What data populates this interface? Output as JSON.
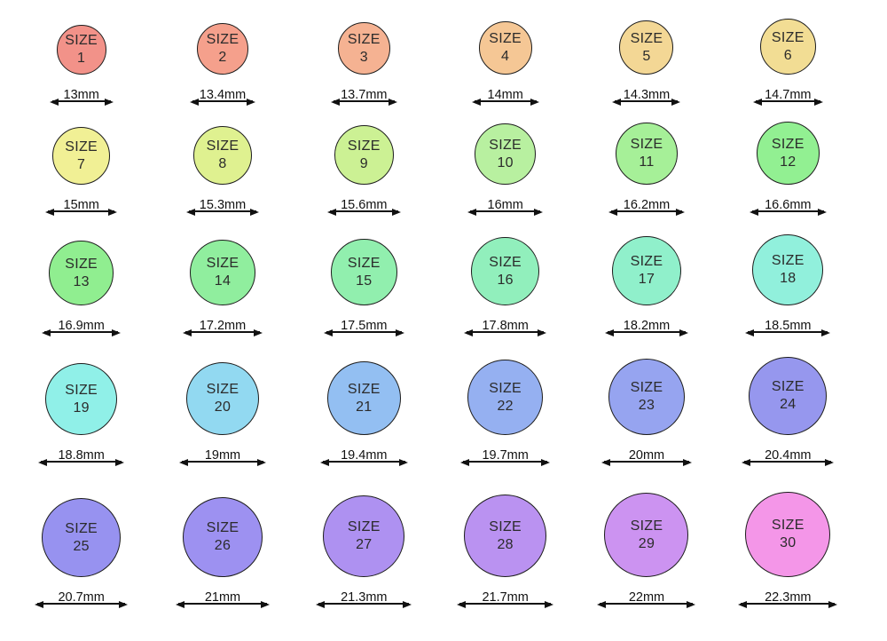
{
  "page": {
    "background_color": "#ffffff",
    "text_color": "#2b2b2b",
    "stroke_color": "#1c1c1c",
    "description_unit": "mm"
  },
  "ring_sizes": [
    {
      "size_label": "SIZE",
      "number": "1",
      "diameter_label": "13mm",
      "diameter_mm": 13.0,
      "color": "#F29289"
    },
    {
      "size_label": "SIZE",
      "number": "2",
      "diameter_label": "13.4mm",
      "diameter_mm": 13.4,
      "color": "#F5A08C"
    },
    {
      "size_label": "SIZE",
      "number": "3",
      "diameter_label": "13.7mm",
      "diameter_mm": 13.7,
      "color": "#F5B292"
    },
    {
      "size_label": "SIZE",
      "number": "4",
      "diameter_label": "14mm",
      "diameter_mm": 14.0,
      "color": "#F5C795"
    },
    {
      "size_label": "SIZE",
      "number": "5",
      "diameter_label": "14.3mm",
      "diameter_mm": 14.3,
      "color": "#F3D795"
    },
    {
      "size_label": "SIZE",
      "number": "6",
      "diameter_label": "14.7mm",
      "diameter_mm": 14.7,
      "color": "#F2DD94"
    },
    {
      "size_label": "SIZE",
      "number": "7",
      "diameter_label": "15mm",
      "diameter_mm": 15.0,
      "color": "#F1F095"
    },
    {
      "size_label": "SIZE",
      "number": "8",
      "diameter_label": "15.3mm",
      "diameter_mm": 15.3,
      "color": "#DFF190"
    },
    {
      "size_label": "SIZE",
      "number": "9",
      "diameter_label": "15.6mm",
      "diameter_mm": 15.6,
      "color": "#CCF194"
    },
    {
      "size_label": "SIZE",
      "number": "10",
      "diameter_label": "16mm",
      "diameter_mm": 16.0,
      "color": "#B8F0A0"
    },
    {
      "size_label": "SIZE",
      "number": "11",
      "diameter_label": "16.2mm",
      "diameter_mm": 16.2,
      "color": "#A6F098"
    },
    {
      "size_label": "SIZE",
      "number": "12",
      "diameter_label": "16.6mm",
      "diameter_mm": 16.6,
      "color": "#92F092"
    },
    {
      "size_label": "SIZE",
      "number": "13",
      "diameter_label": "16.9mm",
      "diameter_mm": 16.9,
      "color": "#90EE90"
    },
    {
      "size_label": "SIZE",
      "number": "14",
      "diameter_label": "17.2mm",
      "diameter_mm": 17.2,
      "color": "#90EE9E"
    },
    {
      "size_label": "SIZE",
      "number": "15",
      "diameter_label": "17.5mm",
      "diameter_mm": 17.5,
      "color": "#91EFAE"
    },
    {
      "size_label": "SIZE",
      "number": "16",
      "diameter_label": "17.8mm",
      "diameter_mm": 17.8,
      "color": "#91EFBC"
    },
    {
      "size_label": "SIZE",
      "number": "17",
      "diameter_label": "18.2mm",
      "diameter_mm": 18.2,
      "color": "#90F0CB"
    },
    {
      "size_label": "SIZE",
      "number": "18",
      "diameter_label": "18.5mm",
      "diameter_mm": 18.5,
      "color": "#91F0DC"
    },
    {
      "size_label": "SIZE",
      "number": "19",
      "diameter_label": "18.8mm",
      "diameter_mm": 18.8,
      "color": "#90F0E8"
    },
    {
      "size_label": "SIZE",
      "number": "20",
      "diameter_label": "19mm",
      "diameter_mm": 19.0,
      "color": "#92D9F1"
    },
    {
      "size_label": "SIZE",
      "number": "21",
      "diameter_label": "19.4mm",
      "diameter_mm": 19.4,
      "color": "#93BFF2"
    },
    {
      "size_label": "SIZE",
      "number": "22",
      "diameter_label": "19.7mm",
      "diameter_mm": 19.7,
      "color": "#95B0F1"
    },
    {
      "size_label": "SIZE",
      "number": "23",
      "diameter_label": "20mm",
      "diameter_mm": 20.0,
      "color": "#96A4F0"
    },
    {
      "size_label": "SIZE",
      "number": "24",
      "diameter_label": "20.4mm",
      "diameter_mm": 20.4,
      "color": "#9697EE"
    },
    {
      "size_label": "SIZE",
      "number": "25",
      "diameter_label": "20.7mm",
      "diameter_mm": 20.7,
      "color": "#9792F0"
    },
    {
      "size_label": "SIZE",
      "number": "26",
      "diameter_label": "21mm",
      "diameter_mm": 21.0,
      "color": "#9D91F1"
    },
    {
      "size_label": "SIZE",
      "number": "27",
      "diameter_label": "21.3mm",
      "diameter_mm": 21.3,
      "color": "#AE91F1"
    },
    {
      "size_label": "SIZE",
      "number": "28",
      "diameter_label": "21.7mm",
      "diameter_mm": 21.7,
      "color": "#BA92F1"
    },
    {
      "size_label": "SIZE",
      "number": "29",
      "diameter_label": "22mm",
      "diameter_mm": 22.0,
      "color": "#CC93F1"
    },
    {
      "size_label": "SIZE",
      "number": "30",
      "diameter_label": "22.3mm",
      "diameter_mm": 22.3,
      "color": "#F496E8"
    }
  ]
}
